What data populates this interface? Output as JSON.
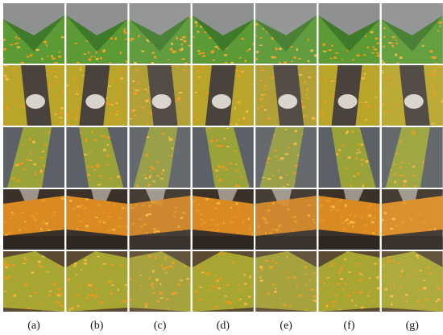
{
  "figure": {
    "column_labels": [
      "(a)",
      "(b)",
      "(c)",
      "(d)",
      "(e)",
      "(f)",
      "(g)"
    ]
  }
}
